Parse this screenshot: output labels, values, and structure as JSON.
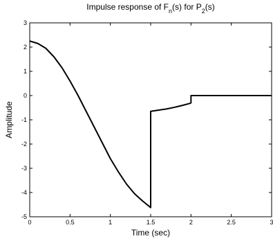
{
  "chart_data": {
    "type": "line",
    "title": {
      "prefix": "Impulse response of F",
      "sub1": "n",
      "middle": "(s) for P",
      "sub2": "2",
      "suffix": "(s)"
    },
    "xlabel": "Time (sec)",
    "ylabel": "Amplitude",
    "xlim": [
      0,
      3
    ],
    "ylim": [
      -5,
      3
    ],
    "xticks": [
      0,
      0.5,
      1,
      1.5,
      2,
      2.5,
      3
    ],
    "xtick_labels": [
      "0",
      "0.5",
      "1",
      "1.5",
      "2",
      "2.5",
      "3"
    ],
    "yticks": [
      -5,
      -4,
      -3,
      -2,
      -1,
      0,
      1,
      2,
      3
    ],
    "ytick_labels": [
      "-5",
      "-4",
      "-3",
      "-2",
      "-1",
      "0",
      "1",
      "2",
      "3"
    ],
    "grid": false,
    "series": [
      {
        "color": "#000000",
        "x": [
          0,
          0.1,
          0.2,
          0.3,
          0.4,
          0.5,
          0.6,
          0.7,
          0.8,
          0.9,
          1.0,
          1.1,
          1.2,
          1.3,
          1.4,
          1.5,
          1.5,
          1.6,
          1.7,
          1.8,
          1.9,
          1.99,
          2.0,
          2.0,
          2.5,
          3.0
        ],
        "y": [
          2.25,
          2.15,
          1.95,
          1.6,
          1.15,
          0.6,
          0.0,
          -0.65,
          -1.3,
          -1.95,
          -2.6,
          -3.15,
          -3.65,
          -4.05,
          -4.35,
          -4.62,
          -0.65,
          -0.6,
          -0.55,
          -0.48,
          -0.4,
          -0.32,
          -0.3,
          0.0,
          0.0,
          0.0
        ]
      }
    ]
  }
}
